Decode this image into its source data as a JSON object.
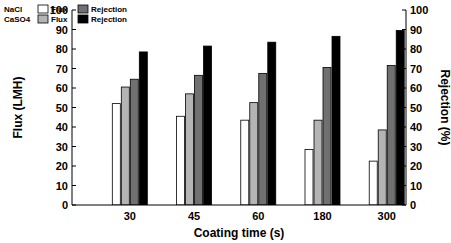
{
  "chart_data": {
    "type": "bar",
    "x_label": "Coating time (s)",
    "y_label": "Flux (LMH)",
    "y2_label": "Rejection (%)",
    "categories": [
      "30",
      "45",
      "60",
      "180",
      "300"
    ],
    "ylim": [
      0,
      100
    ],
    "yticks": [
      0,
      10,
      20,
      30,
      40,
      50,
      60,
      70,
      80,
      90,
      100
    ],
    "y2lim": [
      0,
      100
    ],
    "y2ticks": [
      0,
      10,
      20,
      30,
      40,
      50,
      60,
      70,
      80,
      90,
      100
    ],
    "grid": false,
    "legend": "top-left",
    "series": [
      {
        "name": "Flux",
        "group": "NaCl",
        "color": "#ffffff",
        "values": [
          52,
          45.5,
          43.5,
          28.5,
          22.5
        ]
      },
      {
        "name": "Flux",
        "group": "CaSO4",
        "color": "#b4b4b4",
        "values": [
          60.5,
          57,
          52.5,
          43.5,
          38.5
        ]
      },
      {
        "name": "Rejection",
        "group": "NaCl",
        "color": "#707070",
        "axis": "y2",
        "values": [
          64.5,
          66.5,
          67.5,
          70.5,
          71.5
        ]
      },
      {
        "name": "Rejection",
        "group": "CaSO4",
        "color": "#000000",
        "axis": "y2",
        "values": [
          78.5,
          81.5,
          83.5,
          86.5,
          89.5
        ]
      }
    ]
  }
}
